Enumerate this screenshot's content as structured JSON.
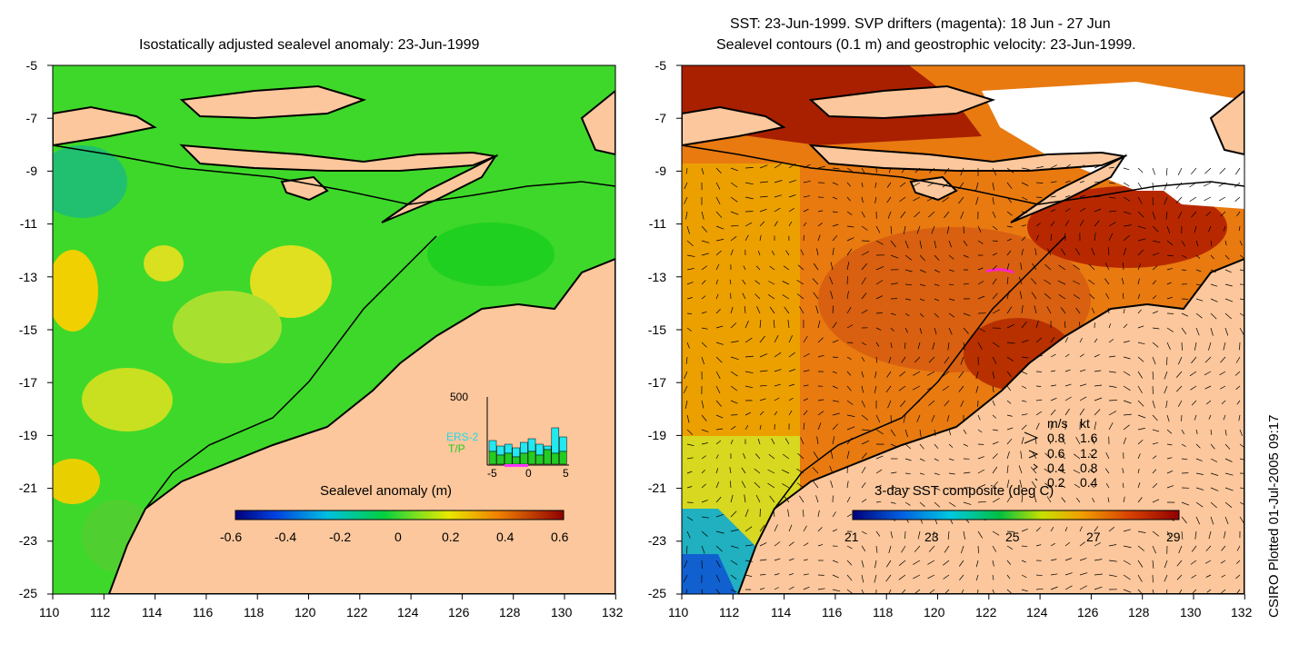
{
  "left_panel": {
    "title": "Isostatically adjusted sealevel anomaly: 23-Jun-1999",
    "colorbar": {
      "label": "Sealevel anomaly (m)",
      "ticks": [
        "-0.6",
        "-0.4",
        "-0.2",
        "0",
        "0.2",
        "0.4",
        "0.6"
      ]
    },
    "histogram_inset": {
      "ymax_label": "500",
      "legend": [
        "ERS-2",
        "T/P"
      ],
      "legend_colors": [
        "#22d8e8",
        "#22cc22"
      ],
      "x_ticks": [
        "-5",
        "0",
        "5"
      ]
    }
  },
  "right_panel": {
    "title_line1": "SST: 23-Jun-1999. SVP drifters (magenta): 18 Jun - 27 Jun",
    "title_line2": "Sealevel contours (0.1 m) and geostrophic velocity: 23-Jun-1999.",
    "colorbar": {
      "label": "3-day SST composite (deg C)",
      "ticks": [
        "21",
        "23",
        "25",
        "27",
        "29"
      ]
    },
    "velocity_key": {
      "header_ms": "m/s",
      "header_kt": "kt",
      "rows": [
        {
          "ms": "0.8",
          "kt": "1.6"
        },
        {
          "ms": "0.6",
          "kt": "1.2"
        },
        {
          "ms": "0.4",
          "kt": "0.8"
        },
        {
          "ms": "0.2",
          "kt": "0.4"
        }
      ]
    }
  },
  "axes": {
    "lat_ticks": [
      "-5",
      "-7",
      "-9",
      "-11",
      "-13",
      "-15",
      "-17",
      "-19",
      "-21",
      "-23",
      "-25"
    ],
    "lon_ticks": [
      "110",
      "112",
      "114",
      "116",
      "118",
      "120",
      "122",
      "124",
      "126",
      "128",
      "130",
      "132"
    ]
  },
  "credit": "CSIRO Plotted 01-Jul-2005 09:17",
  "colors": {
    "land": "#fcc79c",
    "sla_base": "#3ed82a",
    "sst_base": "#e87a10"
  }
}
